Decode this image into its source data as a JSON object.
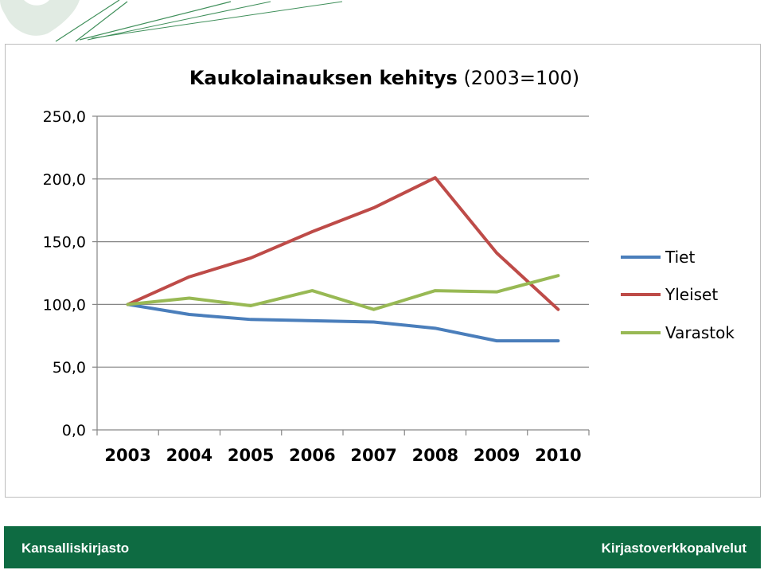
{
  "footer": {
    "left": "Kansalliskirjasto",
    "right": "Kirjastoverkkopalvelut",
    "color": "#0e6b42"
  },
  "chart_data": {
    "type": "line",
    "title_bold": "Kaukolainauksen kehitys",
    "title_rest": " (2003=100)",
    "categories": [
      "2003",
      "2004",
      "2005",
      "2006",
      "2007",
      "2008",
      "2009",
      "2010"
    ],
    "ylim": [
      0,
      250
    ],
    "yticks": [
      "0,0",
      "50,0",
      "100,0",
      "150,0",
      "200,0",
      "250,0"
    ],
    "ytick_values": [
      0,
      50,
      100,
      150,
      200,
      250
    ],
    "grid": true,
    "legend_position": "right",
    "series": [
      {
        "name": "Tiet",
        "color": "#4a7ebb",
        "values": [
          100,
          92,
          88,
          87,
          86,
          81,
          71,
          71
        ]
      },
      {
        "name": "Yleiset",
        "color": "#be4b48",
        "values": [
          100,
          122,
          137,
          158,
          177,
          201,
          141,
          96
        ]
      },
      {
        "name": "Varastok",
        "color": "#98b954",
        "values": [
          100,
          105,
          99,
          111,
          96,
          111,
          110,
          123
        ]
      }
    ]
  }
}
